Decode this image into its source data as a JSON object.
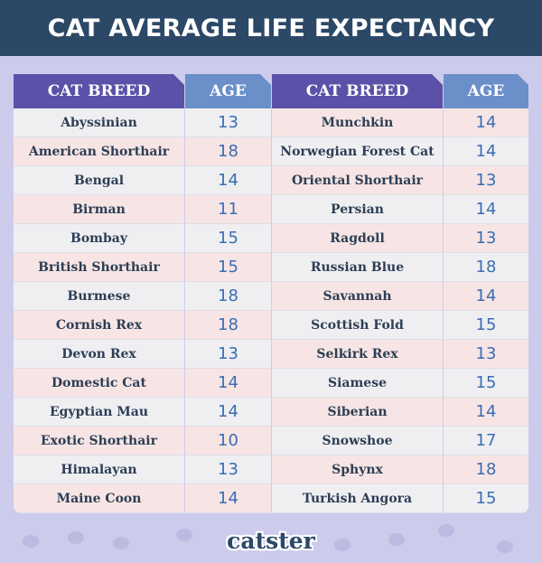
{
  "title": "CAT AVERAGE LIFE EXPECTANCY",
  "headers": {
    "breed": "CAT BREED",
    "age": "AGE"
  },
  "colors": {
    "title_bg": "#2c4867",
    "breed_header": "#5b51a8",
    "age_header": "#6b8fc9",
    "age_text": "#3a6db3",
    "background": "#cdcbec"
  },
  "logo": "catster",
  "chart_data": {
    "type": "table",
    "title": "CAT AVERAGE LIFE EXPECTANCY",
    "columns": [
      "CAT BREED",
      "AGE"
    ],
    "left": [
      [
        "Abyssinian",
        "13"
      ],
      [
        "American Shorthair",
        "18"
      ],
      [
        "Bengal",
        "14"
      ],
      [
        "Birman",
        "11"
      ],
      [
        "Bombay",
        "15"
      ],
      [
        "British Shorthair",
        "15"
      ],
      [
        "Burmese",
        "18"
      ],
      [
        "Cornish Rex",
        "18"
      ],
      [
        "Devon Rex",
        "13"
      ],
      [
        "Domestic Cat",
        "14"
      ],
      [
        "Egyptian Mau",
        "14"
      ],
      [
        "Exotic Shorthair",
        "10"
      ],
      [
        "Himalayan",
        "13"
      ],
      [
        "Maine Coon",
        "14"
      ]
    ],
    "right": [
      [
        "Munchkin",
        "14"
      ],
      [
        "Norwegian Forest Cat",
        "14"
      ],
      [
        "Oriental Shorthair",
        "13"
      ],
      [
        "Persian",
        "14"
      ],
      [
        "Ragdoll",
        "13"
      ],
      [
        "Russian Blue",
        "18"
      ],
      [
        "Savannah",
        "14"
      ],
      [
        "Scottish Fold",
        "15"
      ],
      [
        "Selkirk Rex",
        "13"
      ],
      [
        "Siamese",
        "15"
      ],
      [
        "Siberian",
        "14"
      ],
      [
        "Snowshoe",
        "17"
      ],
      [
        "Sphynx",
        "18"
      ],
      [
        "Turkish Angora",
        "15"
      ]
    ]
  }
}
